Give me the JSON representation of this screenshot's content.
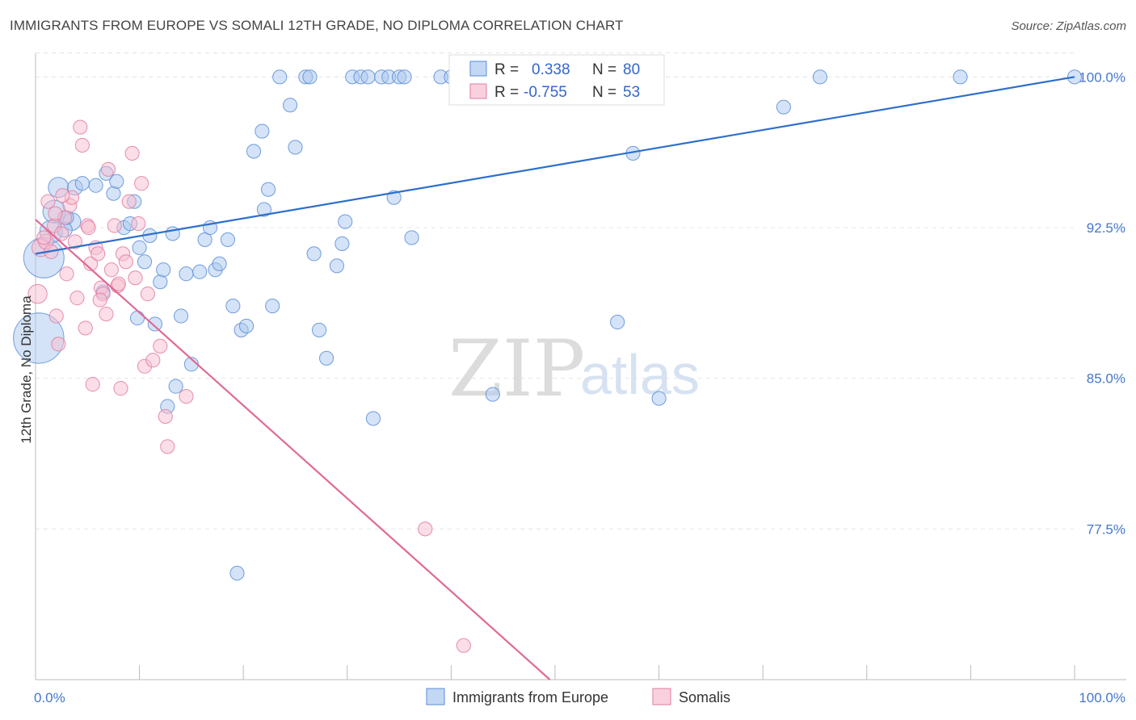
{
  "title": "IMMIGRANTS FROM EUROPE VS SOMALI 12TH GRADE, NO DIPLOMA CORRELATION CHART",
  "source": "Source: ZipAtlas.com",
  "watermark": {
    "zip": "ZIP",
    "atlas": "atlas"
  },
  "legend": {
    "r_label": "R =",
    "n_label": "N =",
    "rows": [
      {
        "r": "0.338",
        "n": "80",
        "color": "#a9c7f0",
        "stroke": "#5b8dd8"
      },
      {
        "r": "-0.755",
        "n": "53",
        "color": "#f7bdd0",
        "stroke": "#e27ba0"
      }
    ]
  },
  "chart_data": {
    "type": "scatter",
    "ylabel": "12th Grade, No Diploma",
    "xlim": [
      0,
      100
    ],
    "ylim": [
      70,
      101.5
    ],
    "x_tick_labels": [
      {
        "v": 0,
        "label": "0.0%"
      },
      {
        "v": 100,
        "label": "100.0%"
      }
    ],
    "y_ticks": [
      {
        "v": 100,
        "label": "100.0%"
      },
      {
        "v": 92.5,
        "label": "92.5%"
      },
      {
        "v": 85,
        "label": "85.0%"
      },
      {
        "v": 77.5,
        "label": "77.5%"
      }
    ],
    "series": [
      {
        "name": "Immigrants from Europe",
        "color": "#a9c7f0",
        "stroke": "#5b8dd8",
        "line_color": "#2d6fcc",
        "trend": [
          [
            0,
            91.2
          ],
          [
            100,
            100.0
          ]
        ],
        "points": [
          [
            0.3,
            87.0,
            40
          ],
          [
            0.8,
            91.0,
            32
          ],
          [
            1.5,
            92.3,
            18
          ],
          [
            1.8,
            93.3,
            18
          ],
          [
            2.2,
            94.5,
            16
          ],
          [
            3.5,
            92.8,
            14
          ],
          [
            2.8,
            92.4,
            12
          ],
          [
            3.8,
            94.5,
            12
          ],
          [
            4.5,
            94.7,
            11
          ],
          [
            5.8,
            94.6,
            11
          ],
          [
            6.5,
            89.3,
            11
          ],
          [
            6.8,
            95.2,
            11
          ],
          [
            7.5,
            94.2,
            11
          ],
          [
            7.8,
            94.8,
            11
          ],
          [
            8.5,
            92.5,
            11
          ],
          [
            9.1,
            92.7,
            11
          ],
          [
            9.5,
            93.8,
            11
          ],
          [
            10.0,
            91.5,
            11
          ],
          [
            10.5,
            90.8,
            11
          ],
          [
            11.0,
            92.1,
            11
          ],
          [
            11.5,
            87.7,
            11
          ],
          [
            12.0,
            89.8,
            11
          ],
          [
            12.3,
            90.4,
            11
          ],
          [
            12.7,
            83.6,
            11
          ],
          [
            13.2,
            92.2,
            11
          ],
          [
            14.0,
            88.1,
            11
          ],
          [
            14.5,
            90.2,
            11
          ],
          [
            15.0,
            85.7,
            11
          ],
          [
            15.8,
            90.3,
            11
          ],
          [
            16.3,
            91.9,
            11
          ],
          [
            16.8,
            92.5,
            11
          ],
          [
            17.3,
            90.4,
            11
          ],
          [
            17.7,
            90.7,
            11
          ],
          [
            18.5,
            91.9,
            11
          ],
          [
            19.0,
            88.6,
            11
          ],
          [
            19.4,
            75.3,
            11
          ],
          [
            19.8,
            87.4,
            11
          ],
          [
            20.3,
            87.6,
            11
          ],
          [
            21.0,
            96.3,
            11
          ],
          [
            21.8,
            97.3,
            11
          ],
          [
            22.0,
            93.4,
            11
          ],
          [
            22.4,
            94.4,
            11
          ],
          [
            22.8,
            88.6,
            11
          ],
          [
            23.5,
            100.0,
            11
          ],
          [
            24.5,
            98.6,
            11
          ],
          [
            25.0,
            96.5,
            11
          ],
          [
            26.0,
            100.0,
            11
          ],
          [
            26.4,
            100.0,
            11
          ],
          [
            26.8,
            91.2,
            11
          ],
          [
            27.3,
            87.4,
            11
          ],
          [
            28.0,
            86.0,
            11
          ],
          [
            29.0,
            90.6,
            11
          ],
          [
            29.5,
            91.7,
            11
          ],
          [
            29.8,
            92.8,
            11
          ],
          [
            30.5,
            100.0,
            11
          ],
          [
            31.3,
            100.0,
            11
          ],
          [
            32.0,
            100.0,
            11
          ],
          [
            32.5,
            83.0,
            11
          ],
          [
            33.3,
            100.0,
            11
          ],
          [
            34.0,
            100.0,
            11
          ],
          [
            34.5,
            94.0,
            11
          ],
          [
            35.0,
            100.0,
            11
          ],
          [
            35.5,
            100.0,
            11
          ],
          [
            36.2,
            92.0,
            11
          ],
          [
            39.0,
            100.0,
            11
          ],
          [
            40.0,
            100.0,
            11
          ],
          [
            44.0,
            84.2,
            11
          ],
          [
            47.5,
            100.0,
            11
          ],
          [
            49.0,
            100.0,
            11
          ],
          [
            51.0,
            100.0,
            11
          ],
          [
            56.0,
            87.8,
            11
          ],
          [
            57.5,
            96.2,
            11
          ],
          [
            60.0,
            84.0,
            11
          ],
          [
            72.0,
            98.5,
            11
          ],
          [
            75.5,
            100.0,
            11
          ],
          [
            89.0,
            100.0,
            11
          ],
          [
            100.0,
            100.0,
            11
          ],
          [
            9.8,
            88.0,
            11
          ],
          [
            13.5,
            84.6,
            11
          ],
          [
            3.0,
            93.0,
            11
          ]
        ]
      },
      {
        "name": "Somalis",
        "color": "#f7bdd0",
        "stroke": "#e27ba0",
        "line_color": "#e06a96",
        "trend": [
          [
            0,
            92.9
          ],
          [
            49.5,
            70.0
          ]
        ],
        "points": [
          [
            0.2,
            89.2,
            15
          ],
          [
            0.5,
            91.5,
            14
          ],
          [
            1.0,
            91.8,
            12
          ],
          [
            1.2,
            93.8,
            11
          ],
          [
            1.5,
            91.3,
            11
          ],
          [
            1.8,
            92.6,
            11
          ],
          [
            2.0,
            88.1,
            11
          ],
          [
            2.2,
            86.7,
            11
          ],
          [
            2.5,
            92.2,
            11
          ],
          [
            2.8,
            93.0,
            11
          ],
          [
            3.0,
            90.2,
            11
          ],
          [
            3.3,
            93.6,
            11
          ],
          [
            3.5,
            94.0,
            11
          ],
          [
            3.8,
            91.8,
            11
          ],
          [
            4.0,
            89.0,
            11
          ],
          [
            4.3,
            97.5,
            11
          ],
          [
            4.5,
            96.6,
            11
          ],
          [
            4.8,
            87.5,
            11
          ],
          [
            5.0,
            92.6,
            11
          ],
          [
            5.3,
            90.7,
            11
          ],
          [
            5.5,
            84.7,
            11
          ],
          [
            5.8,
            91.5,
            11
          ],
          [
            6.0,
            91.2,
            11
          ],
          [
            6.3,
            89.5,
            11
          ],
          [
            6.5,
            89.2,
            11
          ],
          [
            6.8,
            88.2,
            11
          ],
          [
            7.0,
            95.4,
            11
          ],
          [
            7.3,
            90.4,
            11
          ],
          [
            7.6,
            92.6,
            11
          ],
          [
            7.9,
            89.6,
            11
          ],
          [
            8.0,
            89.7,
            11
          ],
          [
            8.4,
            91.2,
            11
          ],
          [
            8.7,
            90.8,
            11
          ],
          [
            9.0,
            93.8,
            11
          ],
          [
            9.3,
            96.2,
            11
          ],
          [
            9.6,
            90.0,
            11
          ],
          [
            9.9,
            92.7,
            11
          ],
          [
            10.2,
            94.7,
            11
          ],
          [
            10.5,
            85.6,
            11
          ],
          [
            10.8,
            89.2,
            11
          ],
          [
            11.3,
            85.9,
            11
          ],
          [
            12.0,
            86.6,
            11
          ],
          [
            12.5,
            83.1,
            11
          ],
          [
            12.7,
            81.6,
            11
          ],
          [
            14.5,
            84.1,
            11
          ],
          [
            8.2,
            84.5,
            11
          ],
          [
            37.5,
            77.5,
            11
          ],
          [
            41.2,
            71.7,
            11
          ],
          [
            2.6,
            94.1,
            11
          ],
          [
            6.2,
            88.9,
            11
          ],
          [
            0.8,
            92.0,
            11
          ],
          [
            5.1,
            92.5,
            11
          ],
          [
            1.9,
            93.2,
            11
          ]
        ]
      }
    ]
  }
}
